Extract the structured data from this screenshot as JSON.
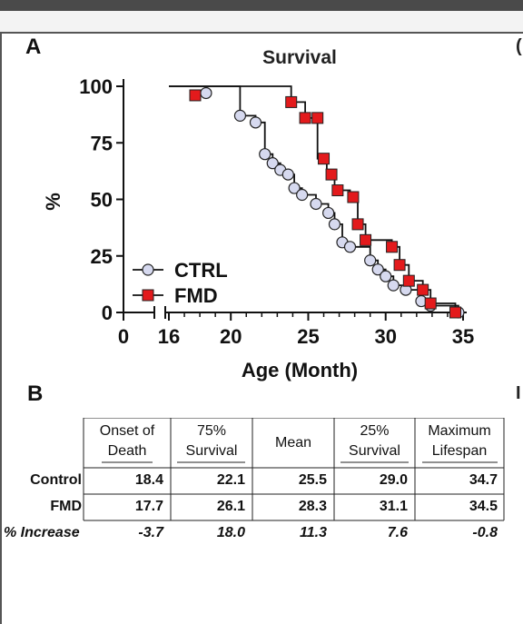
{
  "panel_a": {
    "label": "A"
  },
  "panel_b": {
    "label": "B"
  },
  "chart_data": {
    "type": "line",
    "title": "Survival",
    "xlabel": "Age (Month)",
    "ylabel": "%",
    "xticks": [
      "0",
      "16",
      "20",
      "25",
      "30",
      "35"
    ],
    "yticks": [
      "0",
      "25",
      "50",
      "75",
      "100"
    ],
    "xlim": [
      16,
      35
    ],
    "ylim": [
      0,
      100
    ],
    "axis_break": "between 0 and 16 on x axis",
    "legend_position": "bottom-left",
    "grid": false,
    "series": [
      {
        "name": "CTRL",
        "color": "#d6d9ef",
        "marker": "circle",
        "steps": [
          [
            16,
            100
          ],
          [
            20.6,
            100
          ],
          [
            20.6,
            87
          ],
          [
            21.6,
            87
          ],
          [
            21.6,
            84
          ],
          [
            22.2,
            84
          ],
          [
            22.2,
            70
          ],
          [
            22.7,
            70
          ],
          [
            22.7,
            66
          ],
          [
            23.2,
            66
          ],
          [
            23.2,
            63
          ],
          [
            23.7,
            63
          ],
          [
            23.7,
            61
          ],
          [
            24.1,
            61
          ],
          [
            24.1,
            55
          ],
          [
            24.6,
            55
          ],
          [
            24.6,
            52
          ],
          [
            25.5,
            52
          ],
          [
            25.5,
            48
          ],
          [
            26.3,
            48
          ],
          [
            26.3,
            44
          ],
          [
            26.7,
            44
          ],
          [
            26.7,
            39
          ],
          [
            27.2,
            39
          ],
          [
            27.2,
            31
          ],
          [
            27.7,
            31
          ],
          [
            27.7,
            29
          ],
          [
            29.0,
            29
          ],
          [
            29.0,
            23
          ],
          [
            29.5,
            23
          ],
          [
            29.5,
            19
          ],
          [
            30.0,
            19
          ],
          [
            30.0,
            16
          ],
          [
            30.5,
            16
          ],
          [
            30.5,
            12
          ],
          [
            31.3,
            12
          ],
          [
            31.3,
            10
          ],
          [
            32.3,
            10
          ],
          [
            32.3,
            5
          ],
          [
            32.9,
            5
          ],
          [
            32.9,
            3
          ],
          [
            34.7,
            3
          ],
          [
            34.7,
            0
          ]
        ],
        "markers": [
          [
            18.4,
            97
          ],
          [
            20.6,
            87
          ],
          [
            21.6,
            84
          ],
          [
            22.2,
            70
          ],
          [
            22.7,
            66
          ],
          [
            23.2,
            63
          ],
          [
            23.7,
            61
          ],
          [
            24.1,
            55
          ],
          [
            24.6,
            52
          ],
          [
            25.5,
            48
          ],
          [
            26.3,
            44
          ],
          [
            26.7,
            39
          ],
          [
            27.2,
            31
          ],
          [
            27.7,
            29
          ],
          [
            29.0,
            23
          ],
          [
            29.5,
            19
          ],
          [
            30.0,
            16
          ],
          [
            30.5,
            12
          ],
          [
            31.3,
            10
          ],
          [
            32.3,
            5
          ],
          [
            32.9,
            3
          ],
          [
            34.7,
            0
          ]
        ]
      },
      {
        "name": "FMD",
        "color": "#e31a1c",
        "marker": "square",
        "steps": [
          [
            16,
            100
          ],
          [
            23.9,
            100
          ],
          [
            23.9,
            93
          ],
          [
            24.8,
            93
          ],
          [
            24.8,
            86
          ],
          [
            25.6,
            86
          ],
          [
            25.6,
            68
          ],
          [
            26.2,
            68
          ],
          [
            26.2,
            61
          ],
          [
            26.7,
            61
          ],
          [
            26.7,
            54
          ],
          [
            27.7,
            54
          ],
          [
            27.7,
            51
          ],
          [
            28.2,
            51
          ],
          [
            28.2,
            39
          ],
          [
            28.7,
            39
          ],
          [
            28.7,
            32
          ],
          [
            30.4,
            32
          ],
          [
            30.4,
            29
          ],
          [
            30.9,
            29
          ],
          [
            30.9,
            21
          ],
          [
            31.5,
            21
          ],
          [
            31.5,
            14
          ],
          [
            32.4,
            14
          ],
          [
            32.4,
            10
          ],
          [
            32.9,
            10
          ],
          [
            32.9,
            4
          ],
          [
            34.5,
            4
          ],
          [
            34.5,
            0
          ]
        ],
        "markers": [
          [
            17.7,
            96
          ],
          [
            23.9,
            93
          ],
          [
            24.8,
            86
          ],
          [
            25.6,
            86
          ],
          [
            26.0,
            68
          ],
          [
            26.5,
            61
          ],
          [
            26.9,
            54
          ],
          [
            27.9,
            51
          ],
          [
            28.2,
            39
          ],
          [
            28.7,
            32
          ],
          [
            30.4,
            29
          ],
          [
            30.9,
            21
          ],
          [
            31.5,
            14
          ],
          [
            32.4,
            10
          ],
          [
            32.9,
            4
          ],
          [
            34.5,
            0
          ]
        ]
      }
    ]
  },
  "table": {
    "headers": [
      [
        "Onset of",
        "Death"
      ],
      [
        "75%",
        "Survival"
      ],
      [
        "Mean"
      ],
      [
        "25%",
        "Survival"
      ],
      [
        "Maximum",
        "Lifespan"
      ]
    ],
    "rows": [
      {
        "label": "Control",
        "values": [
          "18.4",
          "22.1",
          "25.5",
          "29.0",
          "34.7"
        ]
      },
      {
        "label": "FMD",
        "values": [
          "17.7",
          "26.1",
          "28.3",
          "31.1",
          "34.5"
        ]
      },
      {
        "label": "% Increase",
        "values": [
          "-3.7",
          "18.0",
          "11.3",
          "7.6",
          "-0.8"
        ]
      }
    ]
  }
}
